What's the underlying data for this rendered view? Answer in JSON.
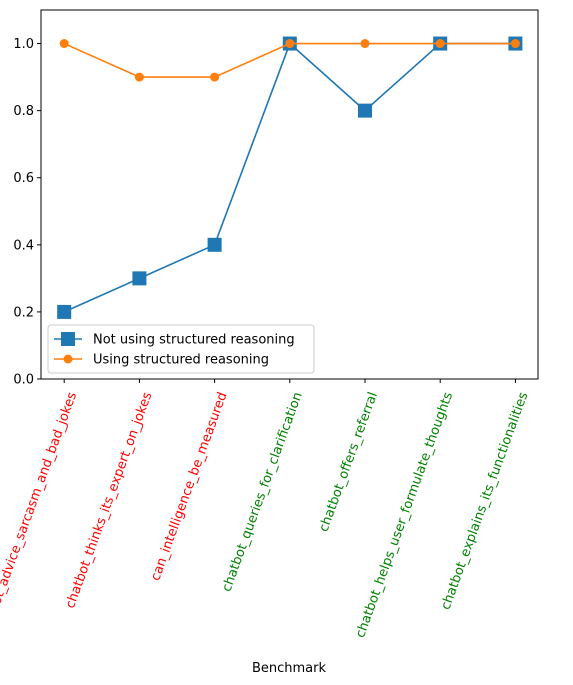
{
  "chart_data": {
    "type": "line",
    "xlabel": "Benchmark",
    "ylabel": "",
    "title": "",
    "ylim": [
      0.0,
      1.1
    ],
    "yticks": [
      "0.0",
      "0.2",
      "0.4",
      "0.6",
      "0.8",
      "1.0"
    ],
    "categories": [
      "bot_advice_sarcasm_and_bad_jokes",
      "chatbot_thinks_its_expert_on_jokes",
      "can_intelligence_be_measured",
      "chatbot_queries_for_clarification",
      "chatbot_offers_referral",
      "chatbot_helps_user_formulate_thoughts",
      "chatbot_explains_its_functionalities"
    ],
    "category_colors": [
      "#ff0000",
      "#ff0000",
      "#ff0000",
      "#008000",
      "#008000",
      "#008000",
      "#008000"
    ],
    "series": [
      {
        "name": "Not using structured reasoning",
        "values": [
          0.2,
          0.3,
          0.4,
          1.0,
          0.8,
          1.0,
          1.0
        ],
        "color": "#1f77b4",
        "marker": "square"
      },
      {
        "name": "Using structured reasoning",
        "values": [
          1.0,
          0.9,
          0.9,
          1.0,
          1.0,
          1.0,
          1.0
        ],
        "color": "#ff7f0e",
        "marker": "circle"
      }
    ],
    "grid": false,
    "legend_position": "lower-left"
  }
}
